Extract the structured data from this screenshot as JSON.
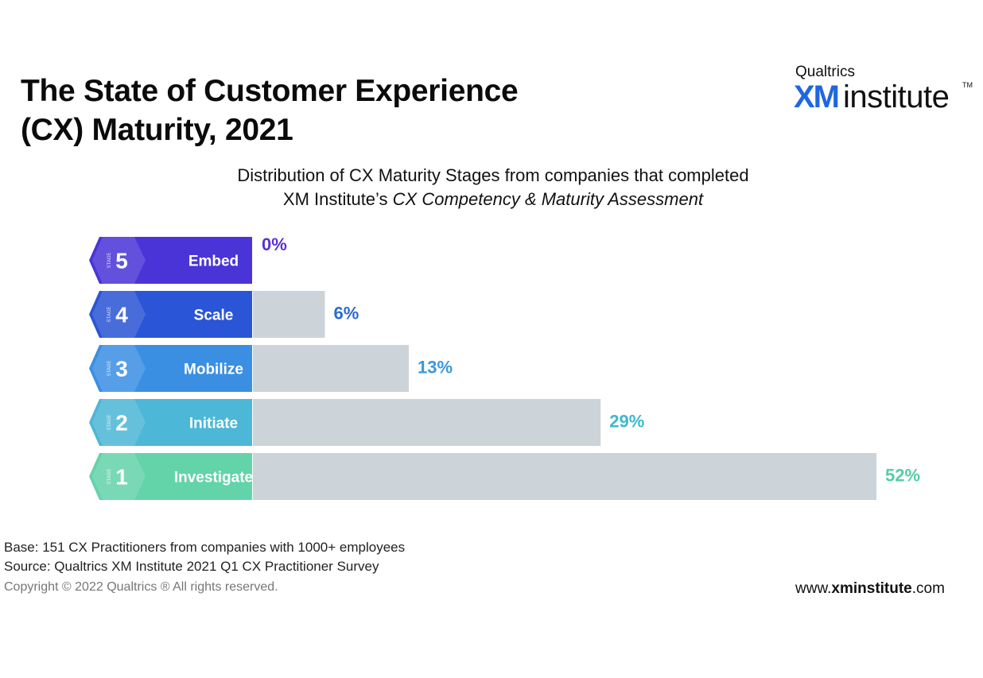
{
  "title": {
    "line1": "The State of Customer Experience",
    "line2": "(CX) Maturity, 2021"
  },
  "logo": {
    "top": "Qualtrics",
    "xm": "XM",
    "institute": "institute",
    "tm": "TM"
  },
  "subtitle": {
    "line1": "Distribution of CX Maturity Stages from companies that completed",
    "line2_plain": "XM Institute’s ",
    "line2_italic": "CX Competency & Maturity Assessment"
  },
  "chart_data": {
    "type": "bar",
    "orientation": "horizontal",
    "categories": [
      "Embed",
      "Scale",
      "Mobilize",
      "Initiate",
      "Investigate"
    ],
    "stage_numbers": [
      "5",
      "4",
      "3",
      "2",
      "1"
    ],
    "stage_tag": "STAGE",
    "values": [
      0,
      6,
      13,
      29,
      52
    ],
    "labels": [
      "0%",
      "6%",
      "13%",
      "29%",
      "52%"
    ],
    "unit": "%",
    "colors": [
      "#4a34d8",
      "#2a55d6",
      "#3b8fe3",
      "#4cb7d6",
      "#63d3aa"
    ],
    "label_colors": [
      "#5a2fd6",
      "#2a6ad6",
      "#3898e0",
      "#3cb8cf",
      "#55cda6"
    ],
    "bar_color": "#ccd3d9",
    "xlim": [
      0,
      52
    ],
    "grid": false,
    "legend": "none"
  },
  "footer": {
    "base": "Base: 151 CX Practitioners from companies with 1000+ employees",
    "source": "Source: Qualtrics XM Institute 2021 Q1 CX Practitioner Survey",
    "copyright": "Copyright © 2022 Qualtrics ® All rights reserved.",
    "site_prefix": "www.",
    "site_bold": "xminstitute",
    "site_suffix": ".com"
  }
}
